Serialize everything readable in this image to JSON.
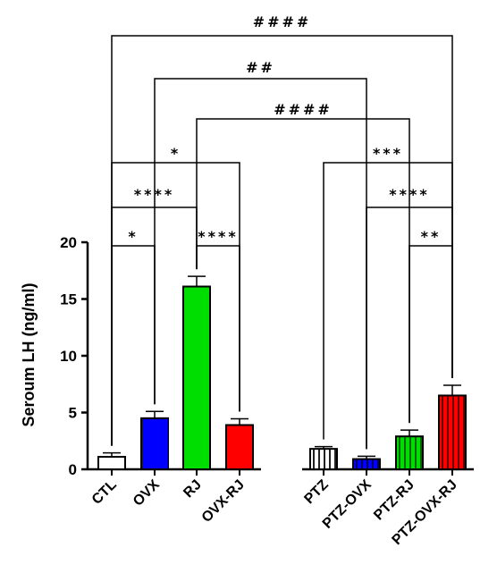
{
  "chart_data": {
    "type": "bar",
    "ylabel": "Seroum LH (ng/ml)",
    "ylim": [
      0,
      20
    ],
    "yticks": [
      "0",
      "5",
      "10",
      "15",
      "20"
    ],
    "groups": [
      {
        "bars": [
          {
            "category": "CTL",
            "value": 1.1,
            "error": 0.35,
            "color": "#ffffff",
            "pattern": "plain"
          },
          {
            "category": "OVX",
            "value": 4.5,
            "error": 0.6,
            "color": "#0000ff",
            "pattern": "plain"
          },
          {
            "category": "RJ",
            "value": 16.1,
            "error": 0.9,
            "color": "#00dd00",
            "pattern": "plain"
          },
          {
            "category": "OVX-RJ",
            "value": 3.9,
            "error": 0.55,
            "color": "#ff0000",
            "pattern": "plain"
          }
        ]
      },
      {
        "bars": [
          {
            "category": "PTZ",
            "value": 1.8,
            "error": 0.2,
            "color": "#ffffff",
            "pattern": "striped"
          },
          {
            "category": "PTZ-OVX",
            "value": 0.9,
            "error": 0.25,
            "color": "#0000ff",
            "pattern": "striped"
          },
          {
            "category": "PTZ-RJ",
            "value": 2.9,
            "error": 0.55,
            "color": "#00dd00",
            "pattern": "striped"
          },
          {
            "category": "PTZ-OVX-RJ",
            "value": 6.5,
            "error": 0.9,
            "color": "#ff0000",
            "pattern": "striped"
          }
        ]
      }
    ],
    "significance": [
      {
        "from": "CTL",
        "to": "OVX",
        "label": "*"
      },
      {
        "from": "RJ",
        "to": "OVX-RJ",
        "label": "****"
      },
      {
        "from": "CTL",
        "to": "RJ",
        "label": "****"
      },
      {
        "from": "CTL",
        "to": "OVX-RJ",
        "label": "*"
      },
      {
        "from": "PTZ-RJ",
        "to": "PTZ-OVX-RJ",
        "label": "**"
      },
      {
        "from": "PTZ-OVX",
        "to": "PTZ-OVX-RJ",
        "label": "****"
      },
      {
        "from": "PTZ",
        "to": "PTZ-OVX-RJ",
        "label": "***"
      },
      {
        "from": "RJ",
        "to": "PTZ-RJ",
        "label": "####"
      },
      {
        "from": "OVX",
        "to": "PTZ-OVX",
        "label": "##"
      },
      {
        "from": "CTL",
        "to": "PTZ-OVX-RJ",
        "label": "####"
      }
    ]
  }
}
